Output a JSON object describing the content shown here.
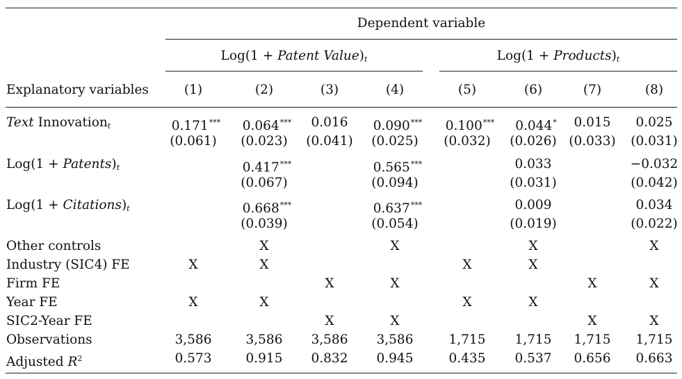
{
  "header": {
    "dependent_variable": "Dependent variable",
    "group1": {
      "prefix": "Log(1 + ",
      "italic": "Patent Value",
      "suffix": ")",
      "sub": "t"
    },
    "group2": {
      "prefix": "Log(1 + ",
      "italic": "Products",
      "suffix": ")",
      "sub": "t"
    },
    "explanatory_label": "Explanatory variables",
    "columns": [
      "(1)",
      "(2)",
      "(3)",
      "(4)",
      "(5)",
      "(6)",
      "(7)",
      "(8)"
    ]
  },
  "rows": [
    {
      "label_italic": "Text",
      "label": " Innovation",
      "label_sub": "t",
      "coef": [
        "0.171",
        "0.064",
        "0.016",
        "0.090",
        "0.100",
        "0.044",
        "0.015",
        "0.025"
      ],
      "stars": [
        "***",
        "***",
        "",
        "***",
        "***",
        "*",
        "",
        ""
      ],
      "se": [
        "(0.061)",
        "(0.023)",
        "(0.041)",
        "(0.025)",
        "(0.032)",
        "(0.026)",
        "(0.033)",
        "(0.031)"
      ]
    },
    {
      "label": "Log(1 + ",
      "label_italic_mid": "Patents",
      "label_after": ")",
      "label_sub": "t",
      "coef": [
        "",
        "0.417",
        "",
        "0.565",
        "",
        "0.033",
        "",
        "−0.032"
      ],
      "stars": [
        "",
        "***",
        "",
        "***",
        "",
        "",
        "",
        ""
      ],
      "se": [
        "",
        "(0.067)",
        "",
        "(0.094)",
        "",
        "(0.031)",
        "",
        "(0.042)"
      ]
    },
    {
      "label": "Log(1 + ",
      "label_italic_mid": "Citations",
      "label_after": ")",
      "label_sub": "t",
      "coef": [
        "",
        "0.668",
        "",
        "0.637",
        "",
        "0.009",
        "",
        "0.034"
      ],
      "stars": [
        "",
        "***",
        "",
        "***",
        "",
        "",
        "",
        ""
      ],
      "se": [
        "",
        "(0.039)",
        "",
        "(0.054)",
        "",
        "(0.019)",
        "",
        "(0.022)"
      ]
    }
  ],
  "controls": [
    {
      "label": "Other controls",
      "values": [
        "",
        "X",
        "",
        "X",
        "",
        "X",
        "",
        "X"
      ]
    },
    {
      "label": "Industry (SIC4) FE",
      "values": [
        "X",
        "X",
        "",
        "",
        "X",
        "X",
        "",
        ""
      ]
    },
    {
      "label": "Firm FE",
      "values": [
        "",
        "",
        "X",
        "X",
        "",
        "",
        "X",
        "X"
      ]
    },
    {
      "label": "Year FE",
      "values": [
        "X",
        "X",
        "",
        "",
        "X",
        "X",
        "",
        ""
      ]
    },
    {
      "label": "SIC2-Year FE",
      "values": [
        "",
        "",
        "X",
        "X",
        "",
        "",
        "X",
        "X"
      ]
    },
    {
      "label": "Observations",
      "values": [
        "3,586",
        "3,586",
        "3,586",
        "3,586",
        "1,715",
        "1,715",
        "1,715",
        "1,715"
      ]
    },
    {
      "label": "Adjusted ",
      "label_italic": "R",
      "label_sup": "2",
      "values": [
        "0.573",
        "0.915",
        "0.832",
        "0.945",
        "0.435",
        "0.537",
        "0.656",
        "0.663"
      ]
    }
  ]
}
